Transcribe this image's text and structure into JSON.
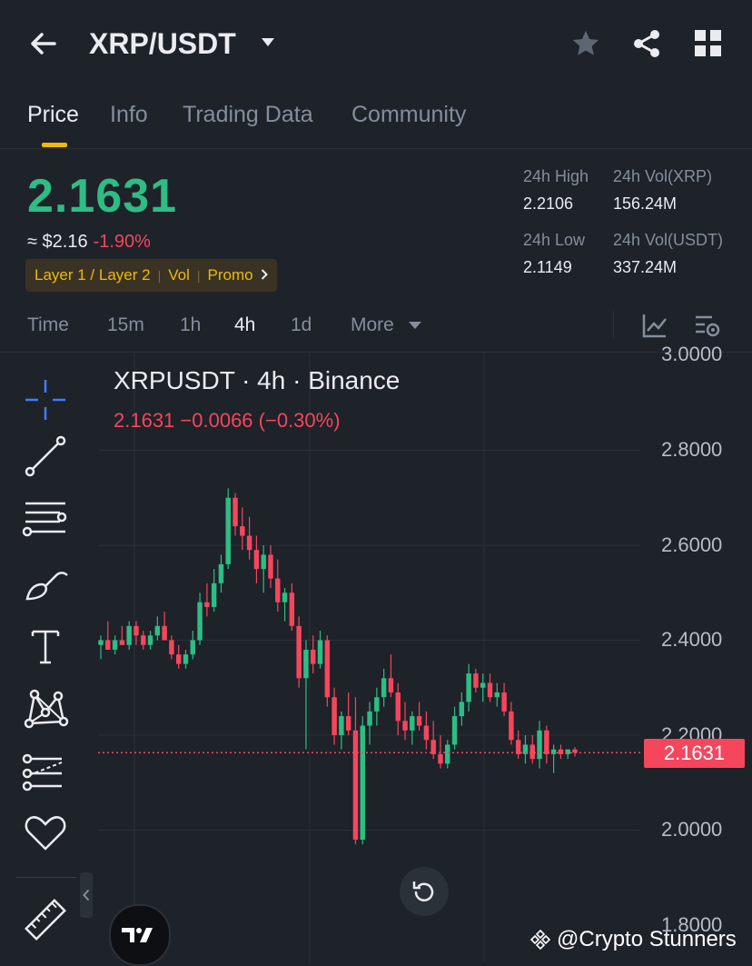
{
  "header": {
    "title": "XRP/USDT",
    "back_icon": "arrow-left-icon",
    "dropdown_icon": "caret-down-icon",
    "actions": [
      "star-icon",
      "share-icon",
      "grid-icon"
    ]
  },
  "tabs": [
    {
      "label": "Price",
      "active": true
    },
    {
      "label": "Info"
    },
    {
      "label": "Trading Data"
    },
    {
      "label": "Community"
    }
  ],
  "ticker": {
    "last_price": "2.1631",
    "approx": "≈ $2.16",
    "change_pct": "-1.90%",
    "tags": [
      "Layer 1 / Layer 2",
      "Vol",
      "Promo"
    ],
    "high_label": "24h High",
    "high_value": "2.2106",
    "vol_xrp_label": "24h Vol(XRP)",
    "vol_xrp_value": "156.24M",
    "low_label": "24h Low",
    "low_value": "2.1149",
    "vol_usdt_label": "24h Vol(USDT)",
    "vol_usdt_value": "337.24M"
  },
  "timeframes": [
    {
      "label": "Time"
    },
    {
      "label": "15m"
    },
    {
      "label": "1h"
    },
    {
      "label": "4h",
      "active": true
    },
    {
      "label": "1d"
    },
    {
      "label": "More"
    }
  ],
  "chart": {
    "title": "XRPUSDT · 4h · Binance",
    "sub": "2.1631  −0.0066 (−0.30%)",
    "last_tag": "2.1631"
  },
  "tools": [
    "crosshair-icon",
    "trend-line-icon",
    "fib-lines-icon",
    "brush-icon",
    "text-tool-icon",
    "pattern-icon",
    "forecast-icon",
    "favorite-heart-icon",
    "ruler-icon"
  ],
  "colors": {
    "up": "#2ebd85",
    "down": "#f6465d",
    "accent": "#f0b90b",
    "bg": "#1e2229"
  },
  "watermark": "@Crypto Stunners",
  "chart_data": {
    "type": "candlestick",
    "title": "XRPUSDT · 4h · Binance",
    "y_ticks": [
      "3.0000",
      "2.8000",
      "2.6000",
      "2.4000",
      "2.2000",
      "2.0000",
      "1.8000"
    ],
    "ylim": [
      1.8,
      3.0
    ],
    "last_price": 2.1631,
    "grid": true,
    "candles": [
      [
        2.39,
        2.41,
        2.36,
        2.4
      ],
      [
        2.4,
        2.44,
        2.38,
        2.38
      ],
      [
        2.38,
        2.41,
        2.37,
        2.4
      ],
      [
        2.4,
        2.43,
        2.39,
        2.39
      ],
      [
        2.39,
        2.44,
        2.38,
        2.43
      ],
      [
        2.43,
        2.44,
        2.39,
        2.41
      ],
      [
        2.41,
        2.42,
        2.38,
        2.39
      ],
      [
        2.39,
        2.42,
        2.38,
        2.41
      ],
      [
        2.41,
        2.45,
        2.4,
        2.43
      ],
      [
        2.43,
        2.46,
        2.4,
        2.4
      ],
      [
        2.4,
        2.41,
        2.36,
        2.37
      ],
      [
        2.37,
        2.39,
        2.34,
        2.35
      ],
      [
        2.35,
        2.38,
        2.34,
        2.37
      ],
      [
        2.37,
        2.42,
        2.36,
        2.4
      ],
      [
        2.4,
        2.5,
        2.39,
        2.48
      ],
      [
        2.48,
        2.52,
        2.45,
        2.47
      ],
      [
        2.47,
        2.55,
        2.46,
        2.52
      ],
      [
        2.52,
        2.58,
        2.5,
        2.56
      ],
      [
        2.56,
        2.72,
        2.55,
        2.7
      ],
      [
        2.7,
        2.71,
        2.62,
        2.64
      ],
      [
        2.64,
        2.68,
        2.59,
        2.62
      ],
      [
        2.62,
        2.66,
        2.57,
        2.59
      ],
      [
        2.59,
        2.62,
        2.52,
        2.55
      ],
      [
        2.55,
        2.6,
        2.5,
        2.58
      ],
      [
        2.58,
        2.6,
        2.51,
        2.53
      ],
      [
        2.53,
        2.57,
        2.46,
        2.48
      ],
      [
        2.48,
        2.51,
        2.44,
        2.5
      ],
      [
        2.5,
        2.52,
        2.42,
        2.43
      ],
      [
        2.43,
        2.45,
        2.3,
        2.32
      ],
      [
        2.32,
        2.4,
        2.17,
        2.38
      ],
      [
        2.38,
        2.41,
        2.33,
        2.35
      ],
      [
        2.35,
        2.42,
        2.34,
        2.4
      ],
      [
        2.4,
        2.41,
        2.26,
        2.28
      ],
      [
        2.28,
        2.3,
        2.18,
        2.2
      ],
      [
        2.2,
        2.25,
        2.17,
        2.24
      ],
      [
        2.24,
        2.29,
        2.2,
        2.21
      ],
      [
        2.21,
        2.28,
        1.97,
        1.98
      ],
      [
        1.98,
        2.24,
        1.97,
        2.22
      ],
      [
        2.22,
        2.27,
        2.18,
        2.25
      ],
      [
        2.25,
        2.3,
        2.22,
        2.28
      ],
      [
        2.28,
        2.34,
        2.26,
        2.32
      ],
      [
        2.32,
        2.37,
        2.28,
        2.29
      ],
      [
        2.29,
        2.31,
        2.2,
        2.23
      ],
      [
        2.23,
        2.27,
        2.19,
        2.21
      ],
      [
        2.21,
        2.25,
        2.18,
        2.24
      ],
      [
        2.24,
        2.27,
        2.21,
        2.22
      ],
      [
        2.22,
        2.25,
        2.17,
        2.19
      ],
      [
        2.19,
        2.23,
        2.15,
        2.16
      ],
      [
        2.16,
        2.2,
        2.13,
        2.14
      ],
      [
        2.14,
        2.19,
        2.13,
        2.18
      ],
      [
        2.18,
        2.26,
        2.17,
        2.24
      ],
      [
        2.24,
        2.29,
        2.22,
        2.27
      ],
      [
        2.27,
        2.35,
        2.25,
        2.33
      ],
      [
        2.33,
        2.34,
        2.29,
        2.3
      ],
      [
        2.3,
        2.33,
        2.27,
        2.31
      ],
      [
        2.31,
        2.33,
        2.27,
        2.28
      ],
      [
        2.28,
        2.31,
        2.26,
        2.29
      ],
      [
        2.29,
        2.31,
        2.24,
        2.25
      ],
      [
        2.25,
        2.27,
        2.18,
        2.19
      ],
      [
        2.19,
        2.21,
        2.15,
        2.16
      ],
      [
        2.16,
        2.2,
        2.14,
        2.18
      ],
      [
        2.18,
        2.2,
        2.14,
        2.15
      ],
      [
        2.15,
        2.23,
        2.13,
        2.21
      ],
      [
        2.21,
        2.22,
        2.14,
        2.16
      ],
      [
        2.16,
        2.18,
        2.12,
        2.17
      ],
      [
        2.17,
        2.18,
        2.15,
        2.16
      ],
      [
        2.16,
        2.17,
        2.15,
        2.17
      ],
      [
        2.17,
        2.175,
        2.155,
        2.163
      ]
    ]
  }
}
